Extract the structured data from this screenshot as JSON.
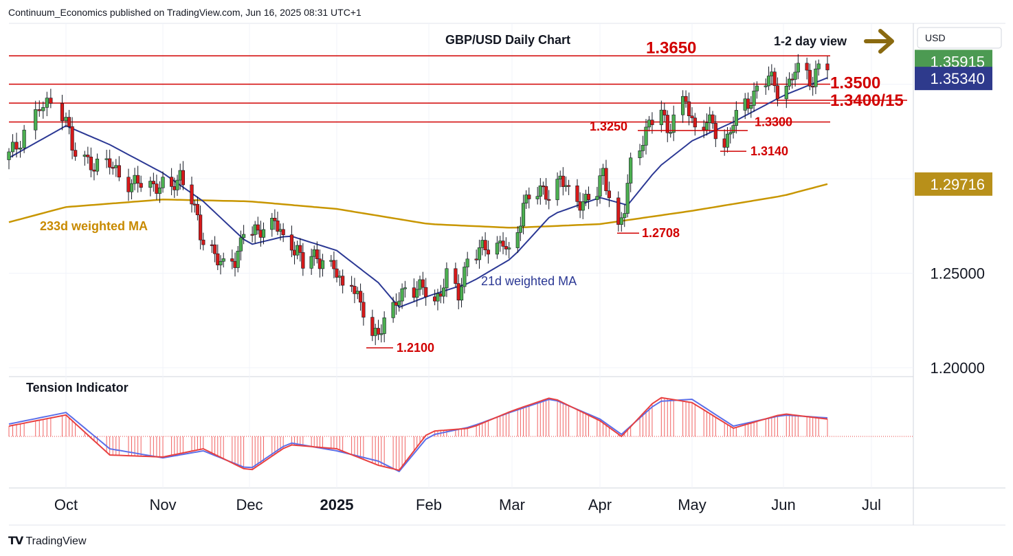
{
  "header": {
    "publisher": "Continuum_Economics published on TradingView.com, Jun 16, 2025 08:31 UTC+1"
  },
  "footer": {
    "brand": "TradingView"
  },
  "currency_label": "USD",
  "colors": {
    "up": "#4caf50",
    "down": "#d61a1a",
    "level": "#d10000",
    "ma21": "#2b3894",
    "ma233": "#c89600",
    "price_badge": "#4c9a52",
    "ma21_badge": "#2e3a8c",
    "ma233_badge": "#b8901a",
    "tension_hist": "#f06060",
    "tension_fast": "#e84040",
    "tension_slow": "#5b6ee8",
    "arrow": "#8a6a10"
  },
  "chart_data": [
    {
      "type": "candlestick",
      "title": "GBP/USD Daily Chart",
      "view_label": "1-2 day view",
      "y_axis": {
        "ticks": [
          1.25,
          1.2
        ],
        "tick_labels": [
          "1.25000",
          "1.20000"
        ],
        "range": [
          1.1922,
          1.3795
        ]
      },
      "x_axis": {
        "tick_labels": [
          "Oct",
          "Nov",
          "Dec",
          "2025",
          "Feb",
          "Mar",
          "Apr",
          "May",
          "Jun",
          "Jul"
        ],
        "tick_dates": [
          "2024-10-01",
          "2024-11-01",
          "2024-12-01",
          "2025-01-01",
          "2025-02-01",
          "2025-03-01",
          "2025-04-01",
          "2025-05-01",
          "2025-06-01",
          "2025-07-01"
        ]
      },
      "price_badges": [
        {
          "value": 1.35915,
          "label": "1.35915",
          "role": "last price"
        },
        {
          "value": 1.3534,
          "label": "1.35340",
          "role": "21d weighted MA"
        },
        {
          "value": 1.29716,
          "label": "1.29716",
          "role": "233d weighted MA"
        }
      ],
      "horizontal_levels": [
        {
          "value": 1.365,
          "label": "1.3650"
        },
        {
          "value": 1.35,
          "label": "1.3500"
        },
        {
          "value": 1.34,
          "label": "1.3400/15"
        },
        {
          "value": 1.33,
          "label": "1.3300"
        }
      ],
      "short_levels": [
        {
          "value": 1.3255,
          "label": "1.3250"
        },
        {
          "value": 1.3145,
          "label": "1.3140"
        },
        {
          "value": 1.2712,
          "label": "1.2708"
        },
        {
          "value": 1.2105,
          "label": "1.2100"
        }
      ],
      "ma_labels": {
        "ma233": "233d weighted MA",
        "ma21": "21d weighted MA"
      },
      "series_sampling": "daily closes read off chart, interpolated between keypoints",
      "close_keypoints": [
        [
          "2024-09-16",
          1.312
        ],
        [
          "2024-09-18",
          1.317
        ],
        [
          "2024-09-20",
          1.326
        ],
        [
          "2024-09-24",
          1.337
        ],
        [
          "2024-09-27",
          1.339
        ],
        [
          "2024-10-01",
          1.335
        ],
        [
          "2024-10-03",
          1.314
        ],
        [
          "2024-10-08",
          1.309
        ],
        [
          "2024-10-15",
          1.307
        ],
        [
          "2024-10-22",
          1.297
        ],
        [
          "2024-10-25",
          1.297
        ],
        [
          "2024-10-31",
          1.297
        ],
        [
          "2024-11-04",
          1.293
        ],
        [
          "2024-11-07",
          1.303
        ],
        [
          "2024-11-11",
          1.29
        ],
        [
          "2024-11-14",
          1.269
        ],
        [
          "2024-11-18",
          1.264
        ],
        [
          "2024-11-22",
          1.252
        ],
        [
          "2024-11-26",
          1.257
        ],
        [
          "2024-11-29",
          1.273
        ],
        [
          "2024-12-04",
          1.27
        ],
        [
          "2024-12-06",
          1.276
        ],
        [
          "2024-12-10",
          1.278
        ],
        [
          "2024-12-13",
          1.266
        ],
        [
          "2024-12-18",
          1.264
        ],
        [
          "2024-12-20",
          1.254
        ],
        [
          "2024-12-23",
          1.258
        ],
        [
          "2024-12-27",
          1.258
        ],
        [
          "2024-12-31",
          1.252
        ],
        [
          "2025-01-03",
          1.242
        ],
        [
          "2025-01-06",
          1.248
        ],
        [
          "2025-01-09",
          1.232
        ],
        [
          "2025-01-13",
          1.216
        ],
        [
          "2025-01-16",
          1.223
        ],
        [
          "2025-01-20",
          1.23
        ],
        [
          "2025-01-24",
          1.243
        ],
        [
          "2025-01-28",
          1.242
        ],
        [
          "2025-01-31",
          1.24
        ],
        [
          "2025-02-03",
          1.235
        ],
        [
          "2025-02-07",
          1.248
        ],
        [
          "2025-02-11",
          1.238
        ],
        [
          "2025-02-14",
          1.259
        ],
        [
          "2025-02-18",
          1.261
        ],
        [
          "2025-02-21",
          1.264
        ],
        [
          "2025-02-26",
          1.267
        ],
        [
          "2025-02-28",
          1.258
        ],
        [
          "2025-03-03",
          1.27
        ],
        [
          "2025-03-05",
          1.289
        ],
        [
          "2025-03-10",
          1.292
        ],
        [
          "2025-03-14",
          1.293
        ],
        [
          "2025-03-18",
          1.3
        ],
        [
          "2025-03-21",
          1.292
        ],
        [
          "2025-03-26",
          1.288
        ],
        [
          "2025-03-31",
          1.291
        ],
        [
          "2025-04-02",
          1.305
        ],
        [
          "2025-04-03",
          1.299
        ],
        [
          "2025-04-07",
          1.272
        ],
        [
          "2025-04-09",
          1.283
        ],
        [
          "2025-04-11",
          1.309
        ],
        [
          "2025-04-15",
          1.322
        ],
        [
          "2025-04-21",
          1.337
        ],
        [
          "2025-04-23",
          1.326
        ],
        [
          "2025-04-25",
          1.333
        ],
        [
          "2025-04-29",
          1.34
        ],
        [
          "2025-05-02",
          1.327
        ],
        [
          "2025-05-06",
          1.331
        ],
        [
          "2025-05-09",
          1.324
        ],
        [
          "2025-05-12",
          1.318
        ],
        [
          "2025-05-15",
          1.331
        ],
        [
          "2025-05-20",
          1.339
        ],
        [
          "2025-05-23",
          1.349
        ],
        [
          "2025-05-27",
          1.353
        ],
        [
          "2025-05-30",
          1.347
        ],
        [
          "2025-06-03",
          1.351
        ],
        [
          "2025-06-05",
          1.357
        ],
        [
          "2025-06-09",
          1.355
        ],
        [
          "2025-06-11",
          1.352
        ],
        [
          "2025-06-13",
          1.36
        ],
        [
          "2025-06-16",
          1.359
        ]
      ],
      "ma21_keypoints": [
        [
          "2024-09-16",
          1.311
        ],
        [
          "2024-10-01",
          1.328
        ],
        [
          "2024-10-15",
          1.318
        ],
        [
          "2024-11-01",
          1.303
        ],
        [
          "2024-11-15",
          1.288
        ],
        [
          "2024-12-01",
          1.265
        ],
        [
          "2024-12-15",
          1.27
        ],
        [
          "2025-01-01",
          1.262
        ],
        [
          "2025-01-15",
          1.245
        ],
        [
          "2025-01-22",
          1.232
        ],
        [
          "2025-02-01",
          1.238
        ],
        [
          "2025-02-15",
          1.245
        ],
        [
          "2025-03-01",
          1.258
        ],
        [
          "2025-03-15",
          1.281
        ],
        [
          "2025-04-01",
          1.29
        ],
        [
          "2025-04-10",
          1.286
        ],
        [
          "2025-04-20",
          1.306
        ],
        [
          "2025-05-01",
          1.32
        ],
        [
          "2025-05-15",
          1.33
        ],
        [
          "2025-06-01",
          1.344
        ],
        [
          "2025-06-16",
          1.3534
        ]
      ],
      "ma233_keypoints": [
        [
          "2024-09-16",
          1.277
        ],
        [
          "2024-10-01",
          1.285
        ],
        [
          "2024-11-01",
          1.289
        ],
        [
          "2024-12-01",
          1.288
        ],
        [
          "2025-01-01",
          1.284
        ],
        [
          "2025-02-01",
          1.276
        ],
        [
          "2025-03-01",
          1.274
        ],
        [
          "2025-04-01",
          1.276
        ],
        [
          "2025-05-01",
          1.283
        ],
        [
          "2025-06-01",
          1.291
        ],
        [
          "2025-06-16",
          1.29716
        ]
      ]
    },
    {
      "type": "line",
      "title": "Tension Indicator",
      "series": [
        {
          "keypoints": [
            [
              "2024-09-16",
              0.25
            ],
            [
              "2024-10-01",
              0.52
            ],
            [
              "2024-10-15",
              -0.45
            ],
            [
              "2024-11-01",
              -0.5
            ],
            [
              "2024-11-15",
              -0.3
            ],
            [
              "2024-12-01",
              -0.85
            ],
            [
              "2024-12-15",
              -0.2
            ],
            [
              "2025-01-01",
              -0.3
            ],
            [
              "2025-01-15",
              -0.7
            ],
            [
              "2025-01-22",
              -0.82
            ],
            [
              "2025-02-01",
              0.12
            ],
            [
              "2025-02-15",
              0.2
            ],
            [
              "2025-03-01",
              0.62
            ],
            [
              "2025-03-15",
              0.95
            ],
            [
              "2025-04-01",
              0.38
            ],
            [
              "2025-04-08",
              0.0
            ],
            [
              "2025-04-20",
              0.95
            ],
            [
              "2025-05-01",
              0.82
            ],
            [
              "2025-05-15",
              0.2
            ],
            [
              "2025-06-01",
              0.55
            ],
            [
              "2025-06-16",
              0.42
            ]
          ]
        },
        {
          "keypoints": [
            [
              "2024-09-16",
              0.3
            ],
            [
              "2024-10-01",
              0.58
            ],
            [
              "2024-10-15",
              -0.3
            ],
            [
              "2024-11-01",
              -0.52
            ],
            [
              "2024-11-15",
              -0.35
            ],
            [
              "2024-12-01",
              -0.8
            ],
            [
              "2024-12-15",
              -0.15
            ],
            [
              "2025-01-01",
              -0.35
            ],
            [
              "2025-01-15",
              -0.6
            ],
            [
              "2025-01-22",
              -0.85
            ],
            [
              "2025-02-01",
              0.02
            ],
            [
              "2025-02-15",
              0.23
            ],
            [
              "2025-03-01",
              0.6
            ],
            [
              "2025-03-15",
              0.92
            ],
            [
              "2025-04-01",
              0.42
            ],
            [
              "2025-04-08",
              0.05
            ],
            [
              "2025-04-20",
              0.85
            ],
            [
              "2025-05-01",
              0.9
            ],
            [
              "2025-05-15",
              0.25
            ],
            [
              "2025-06-01",
              0.52
            ],
            [
              "2025-06-16",
              0.45
            ]
          ]
        }
      ],
      "y_range": [
        -1.0,
        1.1
      ]
    }
  ]
}
